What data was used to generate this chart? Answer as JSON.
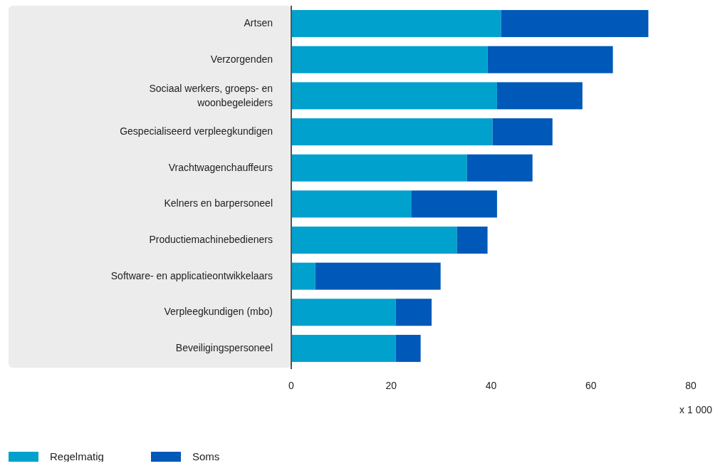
{
  "chart_data": {
    "type": "bar",
    "orientation": "horizontal",
    "stacked": true,
    "xlabel": "x 1 000",
    "categories": [
      "Artsen",
      "Verzorgenden",
      "Sociaal werkers, groeps- en woonbegeleiders",
      "Gespecialiseerd verpleegkundigen",
      "Vrachtwagenchauffeurs",
      "Kelners en barpersoneel",
      "Productiemachinebedieners",
      "Software- en applicatieontwikkelaars",
      "Verpleegkundigen (mbo)",
      "Beveiligingspersoneel"
    ],
    "series": [
      {
        "name": "Regelmatig",
        "color": "#00a1cd",
        "values": [
          42,
          39.3,
          41.2,
          40.3,
          35.2,
          24.1,
          33.2,
          4.8,
          20.9,
          20.9
        ]
      },
      {
        "name": "Soms",
        "color": "#0058b8",
        "values": [
          29.5,
          25.1,
          17.1,
          12,
          13.1,
          17.1,
          6.1,
          25.1,
          7.2,
          5
        ]
      }
    ],
    "xlim": [
      0,
      80
    ],
    "xticks": [
      0,
      20,
      40,
      60,
      80
    ],
    "grid": false,
    "legend": "bottom left"
  }
}
